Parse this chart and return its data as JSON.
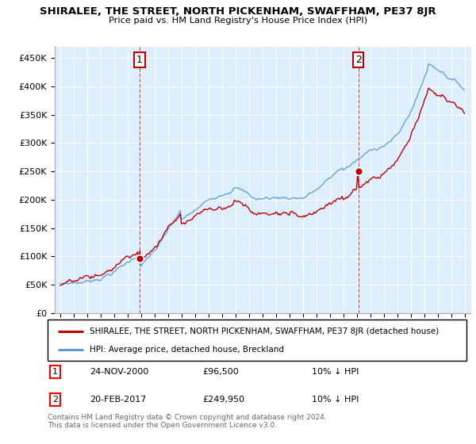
{
  "title": "SHIRALEE, THE STREET, NORTH PICKENHAM, SWAFFHAM, PE37 8JR",
  "subtitle": "Price paid vs. HM Land Registry's House Price Index (HPI)",
  "legend_line1": "SHIRALEE, THE STREET, NORTH PICKENHAM, SWAFFHAM, PE37 8JR (detached house)",
  "legend_line2": "HPI: Average price, detached house, Breckland",
  "sale1_date": "24-NOV-2000",
  "sale1_price": "£96,500",
  "sale1_hpi": "10% ↓ HPI",
  "sale2_date": "20-FEB-2017",
  "sale2_price": "£249,950",
  "sale2_hpi": "10% ↓ HPI",
  "footnote": "Contains HM Land Registry data © Crown copyright and database right 2024.\nThis data is licensed under the Open Government Licence v3.0.",
  "sale1_year": 2000.9,
  "sale1_value": 96500,
  "sale2_year": 2017.13,
  "sale2_value": 249950,
  "hpi_color": "#5b9bd5",
  "price_color": "#c00000",
  "ylim_min": 0,
  "ylim_max": 470000,
  "ytick_values": [
    0,
    50000,
    100000,
    150000,
    200000,
    250000,
    300000,
    350000,
    400000,
    450000
  ],
  "bg_fill_color": "#ddeeff",
  "grid_color": "#cccccc"
}
